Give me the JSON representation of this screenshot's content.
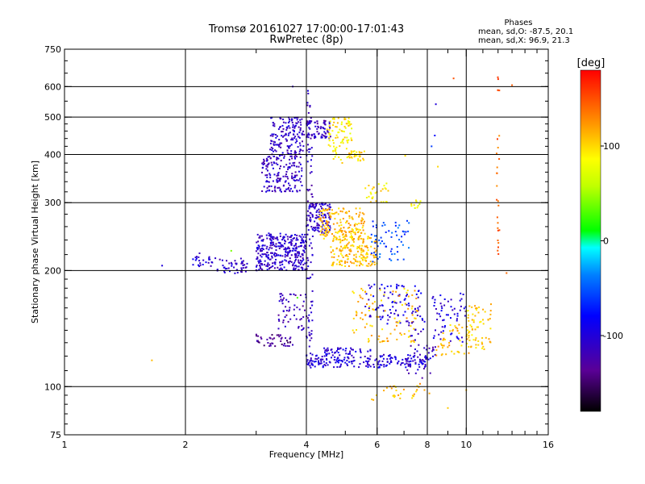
{
  "chart_data": {
    "type": "scatter",
    "title": "Tromsø 20161027 17:00:00-17:01:43",
    "subtitle": "RwPretec (8p)",
    "phases_info": {
      "heading": "Phases",
      "line_o": "mean, sd,O: -87.5, 20.1",
      "line_x": "mean, sd,X:  96.9, 21.3"
    },
    "xlabel": "Frequency [MHz]",
    "ylabel": "Stationary phase Virtual Height [km]",
    "x_scale": "log",
    "y_scale": "log",
    "xlim": [
      1,
      16
    ],
    "ylim": [
      75,
      750
    ],
    "x_ticks": [
      1,
      2,
      4,
      6,
      8,
      10,
      16
    ],
    "x_tick_labels": [
      "1",
      "2",
      "4",
      "6",
      "8",
      "10",
      "16"
    ],
    "x_gridlines": [
      2,
      4,
      6,
      8,
      10
    ],
    "y_ticks": [
      75,
      100,
      200,
      300,
      400,
      500,
      600,
      750
    ],
    "y_tick_labels": [
      "75",
      "100",
      "200",
      "300",
      "400",
      "500",
      "600",
      "750"
    ],
    "y_gridlines": [
      100,
      200,
      300,
      400,
      500,
      600
    ],
    "grid": true,
    "colorbar": {
      "label": "[deg]",
      "range": [
        -180,
        180
      ],
      "ticks": [
        100,
        0,
        -100
      ],
      "tick_labels": [
        "100",
        "0",
        "-100"
      ],
      "placement": "right"
    },
    "clusters": [
      {
        "f_min": 2.4,
        "f_max": 2.85,
        "h_min": 195,
        "h_max": 215,
        "phase": -110,
        "n": 45
      },
      {
        "f_min": 2.05,
        "f_max": 2.4,
        "h_min": 205,
        "h_max": 222,
        "phase": -105,
        "n": 25
      },
      {
        "f_min": 3.0,
        "f_max": 4.0,
        "h_min": 200,
        "h_max": 250,
        "phase": -108,
        "n": 320
      },
      {
        "f_min": 3.1,
        "f_max": 3.9,
        "h_min": 320,
        "h_max": 400,
        "phase": -112,
        "n": 170
      },
      {
        "f_min": 3.25,
        "f_max": 3.95,
        "h_min": 400,
        "h_max": 500,
        "phase": -110,
        "n": 150
      },
      {
        "f_min": 4.0,
        "f_max": 4.6,
        "h_min": 440,
        "h_max": 490,
        "phase": -115,
        "n": 70
      },
      {
        "f_min": 4.5,
        "f_max": 5.2,
        "h_min": 380,
        "h_max": 500,
        "phase": 92,
        "n": 90
      },
      {
        "f_min": 5.1,
        "f_max": 5.6,
        "h_min": 385,
        "h_max": 410,
        "phase": 98,
        "n": 25
      },
      {
        "f_min": 4.0,
        "f_max": 4.6,
        "h_min": 250,
        "h_max": 300,
        "phase": -108,
        "n": 110
      },
      {
        "f_min": 4.3,
        "f_max": 5.6,
        "h_min": 240,
        "h_max": 290,
        "phase": 110,
        "n": 170
      },
      {
        "f_min": 4.6,
        "f_max": 6.0,
        "h_min": 205,
        "h_max": 245,
        "phase": 108,
        "n": 170
      },
      {
        "f_min": 5.6,
        "f_max": 6.4,
        "h_min": 300,
        "h_max": 340,
        "phase": 92,
        "n": 30
      },
      {
        "f_min": 5.8,
        "f_max": 7.2,
        "h_min": 210,
        "h_max": 270,
        "phase": -55,
        "n": 60
      },
      {
        "f_min": 7.3,
        "f_max": 7.8,
        "h_min": 290,
        "h_max": 305,
        "phase": 85,
        "n": 10
      },
      {
        "f_min": 4.0,
        "f_max": 4.15,
        "h_min": 120,
        "h_max": 600,
        "phase": -112,
        "n": 90
      },
      {
        "f_min": 3.0,
        "f_max": 3.7,
        "h_min": 127,
        "h_max": 137,
        "phase": -135,
        "n": 45
      },
      {
        "f_min": 3.4,
        "f_max": 4.0,
        "h_min": 140,
        "h_max": 175,
        "phase": -120,
        "n": 55
      },
      {
        "f_min": 4.0,
        "f_max": 8.0,
        "h_min": 112,
        "h_max": 121,
        "phase": -102,
        "n": 200
      },
      {
        "f_min": 4.4,
        "f_max": 5.8,
        "h_min": 121,
        "h_max": 126,
        "phase": -100,
        "n": 40
      },
      {
        "f_min": 5.6,
        "f_max": 7.8,
        "h_min": 145,
        "h_max": 185,
        "phase": -100,
        "n": 90
      },
      {
        "f_min": 5.2,
        "f_max": 7.6,
        "h_min": 130,
        "h_max": 180,
        "phase": 110,
        "n": 100
      },
      {
        "f_min": 7.0,
        "f_max": 8.4,
        "h_min": 105,
        "h_max": 150,
        "phase": -110,
        "n": 50
      },
      {
        "f_min": 8.2,
        "f_max": 10.0,
        "h_min": 130,
        "h_max": 175,
        "phase": -100,
        "n": 60
      },
      {
        "f_min": 10.0,
        "f_max": 11.6,
        "h_min": 125,
        "h_max": 165,
        "phase": 105,
        "n": 70
      },
      {
        "f_min": 8.4,
        "f_max": 10.2,
        "h_min": 120,
        "h_max": 145,
        "phase": 112,
        "n": 40
      },
      {
        "f_min": 5.8,
        "f_max": 8.2,
        "h_min": 92,
        "h_max": 102,
        "phase": 110,
        "n": 30
      },
      {
        "f_min": 11.9,
        "f_max": 12.1,
        "h_min": 215,
        "h_max": 470,
        "phase": 140,
        "n": 22
      },
      {
        "f_min": 11.9,
        "f_max": 12.1,
        "h_min": 585,
        "h_max": 640,
        "phase": 150,
        "n": 5
      }
    ],
    "isolated_points": [
      {
        "f": 1.65,
        "h": 117,
        "phase": 110
      },
      {
        "f": 1.75,
        "h": 206,
        "phase": -100
      },
      {
        "f": 9.3,
        "h": 630,
        "phase": 150
      },
      {
        "f": 8.4,
        "h": 540,
        "phase": -100
      },
      {
        "f": 13.0,
        "h": 605,
        "phase": 145
      },
      {
        "f": 12.6,
        "h": 197,
        "phase": 140
      },
      {
        "f": 7.05,
        "h": 397,
        "phase": 98
      },
      {
        "f": 3.7,
        "h": 600,
        "phase": -110
      },
      {
        "f": 3.8,
        "h": 170,
        "phase": 30
      },
      {
        "f": 2.6,
        "h": 225,
        "phase": 40
      },
      {
        "f": 8.35,
        "h": 448,
        "phase": -80
      },
      {
        "f": 8.2,
        "h": 420,
        "phase": -60
      },
      {
        "f": 8.5,
        "h": 372,
        "phase": 100
      },
      {
        "f": 9.0,
        "h": 88,
        "phase": 105
      },
      {
        "f": 10.0,
        "h": 98,
        "phase": 110
      }
    ]
  }
}
